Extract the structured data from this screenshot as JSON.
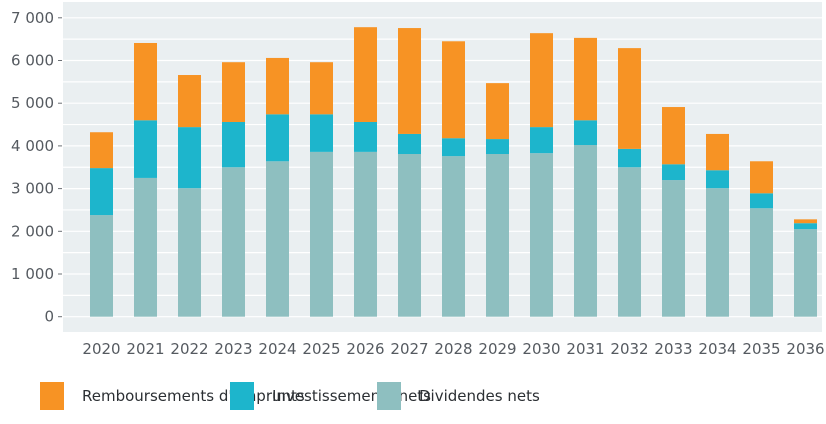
{
  "chart_data": {
    "type": "bar",
    "stacked": true,
    "title": "",
    "xlabel": "",
    "ylabel": "",
    "ylim": [
      0,
      7000
    ],
    "yticks": [
      0,
      1000,
      2000,
      3000,
      4000,
      5000,
      6000,
      7000
    ],
    "ytick_labels": [
      "0",
      "1 000",
      "2 000",
      "3 000",
      "4 000",
      "5 000",
      "6 000",
      "7 000"
    ],
    "grid": true,
    "legend_position": "bottom",
    "categories": [
      "2020",
      "2021",
      "2022",
      "2023",
      "2024",
      "2025",
      "2026",
      "2027",
      "2028",
      "2029",
      "2030",
      "2031",
      "2032",
      "2033",
      "2034",
      "2035",
      "2036"
    ],
    "series": [
      {
        "name": "Dividendes nets",
        "color": "#8ebfc0",
        "values": [
          2380,
          3250,
          3010,
          3500,
          3640,
          3860,
          3860,
          3810,
          3760,
          3810,
          3830,
          4020,
          3500,
          3200,
          3010,
          2540,
          2050
        ]
      },
      {
        "name": "Investissements nets",
        "color": "#1db5cc",
        "values": [
          1100,
          1350,
          1430,
          1060,
          1100,
          880,
          700,
          470,
          420,
          350,
          610,
          580,
          430,
          370,
          420,
          350,
          140
        ]
      },
      {
        "name": "Remboursements d'emprunts",
        "color": "#f79324",
        "values": [
          840,
          1810,
          1220,
          1400,
          1320,
          1220,
          2220,
          2480,
          2270,
          1310,
          2200,
          1930,
          2360,
          1340,
          850,
          750,
          90
        ]
      }
    ]
  },
  "legend": {
    "items": [
      {
        "label": "Remboursements d'emprunts",
        "color": "#f79324"
      },
      {
        "label": "Investissements nets",
        "color": "#1db5cc"
      },
      {
        "label": "Dividendes nets",
        "color": "#8ebfc0"
      }
    ]
  },
  "colors": {
    "plot_background": "#eaeff1",
    "gridline": "#ffffff"
  }
}
